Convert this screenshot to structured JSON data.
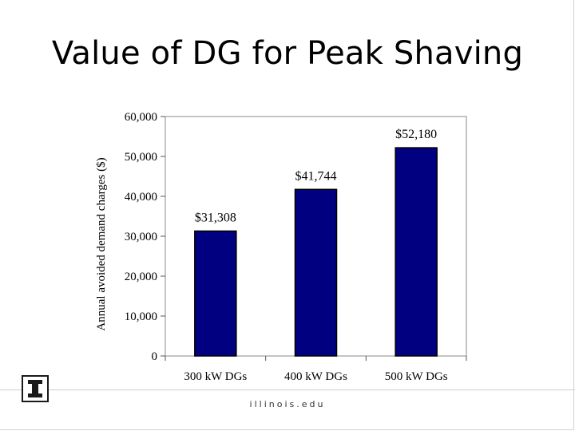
{
  "slide": {
    "title": "Value of DG for Peak Shaving",
    "footer": "illinois.edu",
    "logo_icon": "block-i-logo-icon"
  },
  "chart_data": {
    "type": "bar",
    "categories": [
      "300 kW DGs",
      "400 kW DGs",
      "500 kW DGs"
    ],
    "values": [
      31308,
      41744,
      52180
    ],
    "data_labels": [
      "$31,308",
      "$41,744",
      "$52,180"
    ],
    "title": "",
    "xlabel": "",
    "ylabel": "Annual avoided demand charges ($)",
    "ylim": [
      0,
      60000
    ],
    "yticks": [
      0,
      10000,
      20000,
      30000,
      40000,
      50000,
      60000
    ],
    "ytick_labels": [
      "0",
      "10,000",
      "20,000",
      "30,000",
      "40,000",
      "50,000",
      "60,000"
    ],
    "grid": false,
    "legend": "none",
    "bar_color": "#000080"
  }
}
